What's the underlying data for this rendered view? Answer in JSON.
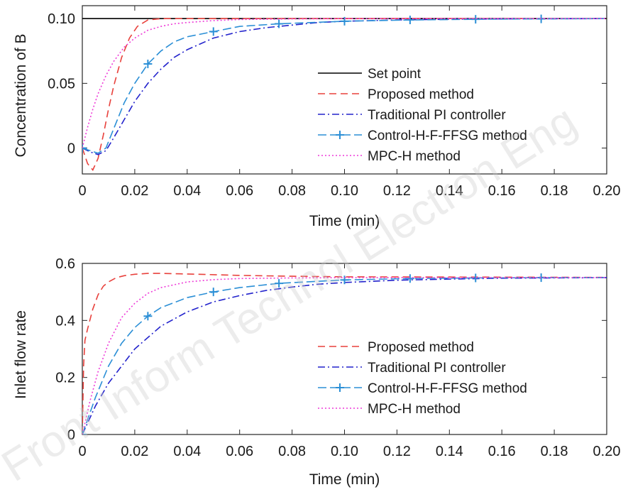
{
  "chart_data": [
    {
      "type": "line",
      "title": "",
      "xlabel": "Time (min)",
      "ylabel": "Concentration of B",
      "xlim": [
        0,
        0.2
      ],
      "ylim": [
        -0.02,
        0.11
      ],
      "xticks": [
        "0",
        "0.02",
        "0.04",
        "0.06",
        "0.08",
        "0.10",
        "0.12",
        "0.14",
        "0.16",
        "0.18",
        "0.20"
      ],
      "yticks": [
        {
          "v": 0,
          "label": "0"
        },
        {
          "v": 0.05,
          "label": "0.05"
        },
        {
          "v": 0.1,
          "label": "0.10"
        }
      ],
      "grid": false,
      "legend_position": "right",
      "series": [
        {
          "name": "Set point",
          "color": "#000000",
          "dash": "",
          "marker": false,
          "x": [
            0,
            0.2
          ],
          "y": [
            0.1,
            0.1
          ]
        },
        {
          "name": "Proposed method",
          "color": "#e8413c",
          "dash": "10,6",
          "marker": false,
          "x": [
            0,
            0.002,
            0.004,
            0.006,
            0.008,
            0.01,
            0.012,
            0.015,
            0.018,
            0.021,
            0.025,
            0.03,
            0.035,
            0.04,
            0.06,
            0.1,
            0.2
          ],
          "y": [
            0,
            -0.012,
            -0.017,
            -0.008,
            0.01,
            0.03,
            0.048,
            0.07,
            0.085,
            0.094,
            0.099,
            0.1,
            0.1,
            0.1,
            0.1,
            0.1,
            0.1
          ]
        },
        {
          "name": "Traditional PI controller",
          "color": "#2222cc",
          "dash": "10,4,2,4",
          "marker": false,
          "x": [
            0,
            0.003,
            0.006,
            0.009,
            0.012,
            0.016,
            0.02,
            0.025,
            0.03,
            0.035,
            0.04,
            0.05,
            0.06,
            0.07,
            0.08,
            0.09,
            0.1,
            0.12,
            0.14,
            0.16,
            0.18,
            0.2
          ],
          "y": [
            0,
            -0.003,
            -0.005,
            -0.002,
            0.008,
            0.022,
            0.036,
            0.05,
            0.061,
            0.07,
            0.076,
            0.085,
            0.09,
            0.093,
            0.095,
            0.097,
            0.098,
            0.099,
            0.0995,
            0.0998,
            0.0999,
            0.1
          ]
        },
        {
          "name": "Control-H-F-FFSG method",
          "color": "#2b8fd6",
          "dash": "12,5",
          "marker": true,
          "x": [
            0,
            0.003,
            0.006,
            0.009,
            0.012,
            0.016,
            0.02,
            0.025,
            0.03,
            0.035,
            0.04,
            0.05,
            0.06,
            0.075,
            0.1,
            0.125,
            0.15,
            0.175,
            0.2
          ],
          "y": [
            0,
            -0.002,
            -0.004,
            0,
            0.015,
            0.035,
            0.05,
            0.065,
            0.075,
            0.082,
            0.086,
            0.09,
            0.094,
            0.096,
            0.098,
            0.099,
            0.0995,
            0.0998,
            0.1
          ],
          "marker_x": [
            0,
            0.025,
            0.05,
            0.075,
            0.1,
            0.125,
            0.15,
            0.175
          ]
        },
        {
          "name": "MPC-H method",
          "color": "#ee3ad8",
          "dash": "2,3",
          "marker": false,
          "x": [
            0,
            0.002,
            0.004,
            0.006,
            0.009,
            0.012,
            0.016,
            0.02,
            0.025,
            0.03,
            0.035,
            0.04,
            0.05,
            0.06,
            0.08,
            0.1,
            0.2
          ],
          "y": [
            0,
            0.016,
            0.03,
            0.042,
            0.056,
            0.067,
            0.078,
            0.085,
            0.091,
            0.094,
            0.096,
            0.097,
            0.0985,
            0.0993,
            0.0998,
            0.1,
            0.1
          ]
        }
      ]
    },
    {
      "type": "line",
      "title": "",
      "xlabel": "Time (min)",
      "ylabel": "Inlet flow rate",
      "xlim": [
        0,
        0.2
      ],
      "ylim": [
        0,
        0.6
      ],
      "xticks": [
        "0",
        "0.02",
        "0.04",
        "0.06",
        "0.08",
        "0.10",
        "0.12",
        "0.14",
        "0.16",
        "0.18",
        "0.20"
      ],
      "yticks": [
        {
          "v": 0,
          "label": "0"
        },
        {
          "v": 0.2,
          "label": "0.2"
        },
        {
          "v": 0.4,
          "label": "0.4"
        },
        {
          "v": 0.6,
          "label": "0.6"
        }
      ],
      "grid": false,
      "legend_position": "bottom-right",
      "series": [
        {
          "name": "Proposed method",
          "color": "#e8413c",
          "dash": "10,6",
          "marker": false,
          "x": [
            0,
            0.0005,
            0.001,
            0.002,
            0.004,
            0.006,
            0.008,
            0.01,
            0.013,
            0.016,
            0.02,
            0.025,
            0.03,
            0.04,
            0.06,
            0.08,
            0.1,
            0.2
          ],
          "y": [
            0,
            0.24,
            0.33,
            0.37,
            0.44,
            0.49,
            0.52,
            0.535,
            0.55,
            0.557,
            0.562,
            0.565,
            0.565,
            0.563,
            0.558,
            0.555,
            0.553,
            0.551
          ]
        },
        {
          "name": "Traditional PI controller",
          "color": "#2222cc",
          "dash": "10,4,2,4",
          "marker": false,
          "x": [
            0,
            0.005,
            0.01,
            0.02,
            0.03,
            0.04,
            0.05,
            0.06,
            0.07,
            0.08,
            0.09,
            0.1,
            0.12,
            0.14,
            0.16,
            0.18,
            0.2
          ],
          "y": [
            0,
            0.1,
            0.18,
            0.3,
            0.38,
            0.43,
            0.465,
            0.487,
            0.505,
            0.517,
            0.527,
            0.533,
            0.541,
            0.545,
            0.548,
            0.549,
            0.55
          ]
        },
        {
          "name": "Control-H-F-FFSG method",
          "color": "#2b8fd6",
          "dash": "12,5",
          "marker": true,
          "x": [
            0,
            0.005,
            0.01,
            0.015,
            0.02,
            0.025,
            0.03,
            0.04,
            0.05,
            0.06,
            0.075,
            0.1,
            0.125,
            0.15,
            0.175,
            0.2
          ],
          "y": [
            0,
            0.13,
            0.24,
            0.32,
            0.375,
            0.415,
            0.445,
            0.48,
            0.5,
            0.515,
            0.53,
            0.542,
            0.547,
            0.549,
            0.55,
            0.55
          ],
          "marker_x": [
            0,
            0.025,
            0.05,
            0.075,
            0.1,
            0.125,
            0.15,
            0.175
          ]
        },
        {
          "name": "MPC-H method",
          "color": "#ee3ad8",
          "dash": "2,3",
          "marker": false,
          "x": [
            0,
            0.003,
            0.006,
            0.01,
            0.015,
            0.02,
            0.025,
            0.03,
            0.04,
            0.05,
            0.06,
            0.08,
            0.1,
            0.15,
            0.2
          ],
          "y": [
            0,
            0.12,
            0.22,
            0.32,
            0.41,
            0.46,
            0.495,
            0.515,
            0.535,
            0.543,
            0.547,
            0.549,
            0.55,
            0.55,
            0.55
          ]
        }
      ]
    }
  ],
  "watermark": "Front Inform Technol Electron Eng"
}
